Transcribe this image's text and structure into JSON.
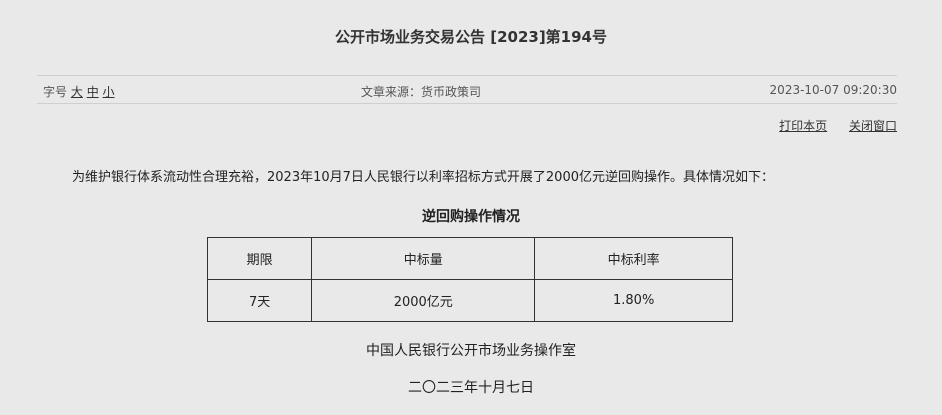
{
  "title": "公开市场业务交易公告 [2023]第194号",
  "meta": {
    "font_label": "字号",
    "font_large": "大",
    "font_medium": "中",
    "font_small": "小",
    "source": "文章来源：货币政策司",
    "datetime": "2023-10-07 09:20:30"
  },
  "links": {
    "print": "打印本页",
    "close": "关闭窗口"
  },
  "paragraph": "为维护银行体系流动性合理充裕，2023年10月7日人民银行以利率招标方式开展了2000亿元逆回购操作。具体情况如下：",
  "table": {
    "caption": "逆回购操作情况",
    "headers": [
      "期限",
      "中标量",
      "中标利率"
    ],
    "rows": [
      [
        "7天",
        "2000亿元",
        "1.80%"
      ]
    ]
  },
  "signature": {
    "org": "中国人民银行公开市场业务操作室",
    "date": "二〇二三年十月七日"
  }
}
